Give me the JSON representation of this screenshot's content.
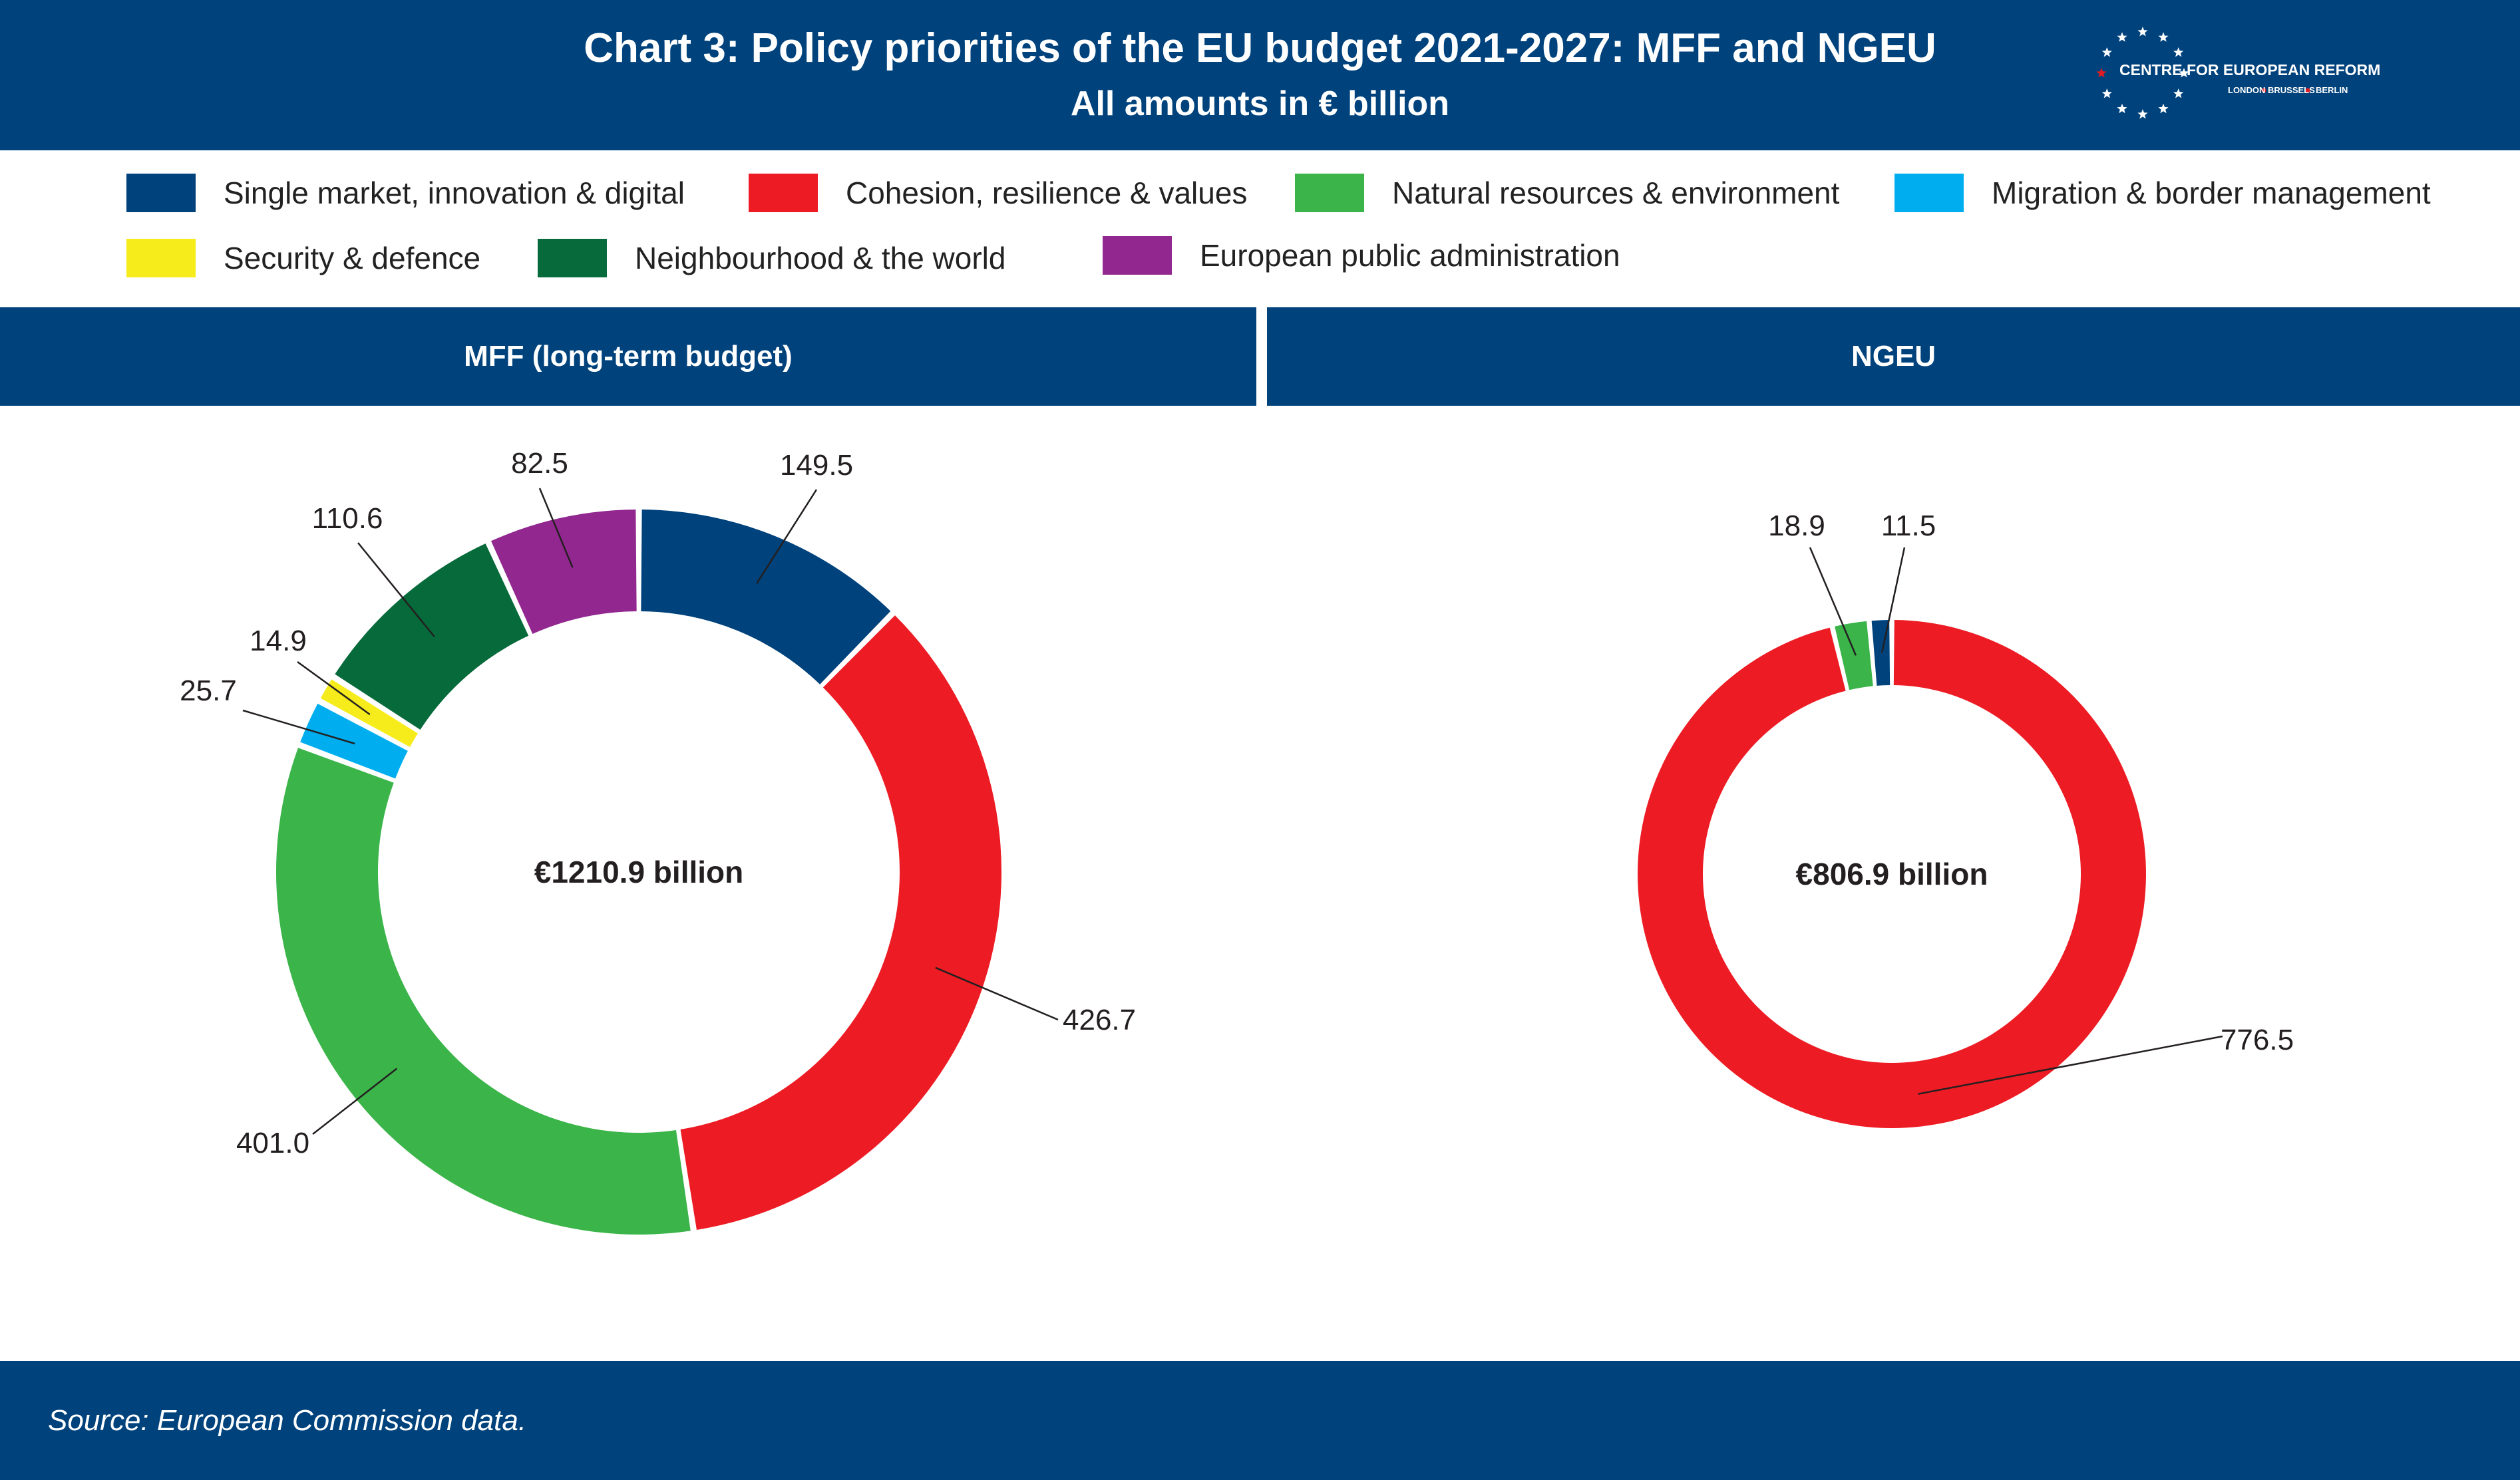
{
  "title": "Chart 3: Policy priorities of the EU budget 2021-2027: MFF and NGEU",
  "subtitle": "All amounts in € billion",
  "logo": {
    "name": "CENTRE FOR EUROPEAN REFORM",
    "cities": [
      "LONDON",
      "BRUSSELS",
      "BERLIN"
    ],
    "colors": {
      "stars": "#ffffff",
      "accent": "#e31b23"
    }
  },
  "legend": [
    {
      "label": "Single market, innovation & digital",
      "color": "#00427c"
    },
    {
      "label": "Cohesion, resilience & values",
      "color": "#ed1c24"
    },
    {
      "label": "Natural resources & environment",
      "color": "#3bb54a"
    },
    {
      "label": "Migration & border management",
      "color": "#00aeef"
    },
    {
      "label": "Security & defence",
      "color": "#f7ec1b"
    },
    {
      "label": "Neighbourhood & the world",
      "color": "#066a3a"
    },
    {
      "label": "European public administration",
      "color": "#92278f"
    }
  ],
  "panels": {
    "left": "MFF (long-term budget)",
    "right": "NGEU"
  },
  "source": "Source: European Commission data.",
  "chart_data": [
    {
      "type": "pie",
      "subtype": "donut",
      "panel": "MFF (long-term budget)",
      "center_label": "€1210.9 billion",
      "unit": "€ billion",
      "categories": [
        "Single market, innovation & digital",
        "Cohesion, resilience & values",
        "Natural resources & environment",
        "Migration & border management",
        "Security & defence",
        "Neighbourhood & the world",
        "European public administration"
      ],
      "values": [
        149.5,
        426.7,
        401.0,
        25.7,
        14.9,
        110.6,
        82.5
      ],
      "value_labels": [
        "149.5",
        "426.7",
        "401.0",
        "25.7",
        "14.9",
        "110.6",
        "82.5"
      ],
      "colors": [
        "#00427c",
        "#ed1c24",
        "#3bb54a",
        "#00aeef",
        "#f7ec1b",
        "#066a3a",
        "#92278f"
      ],
      "start": "12 o'clock",
      "direction": "clockwise"
    },
    {
      "type": "pie",
      "subtype": "donut",
      "panel": "NGEU",
      "center_label": "€806.9 billion",
      "unit": "€ billion",
      "categories": [
        "Cohesion, resilience & values",
        "Natural resources & environment",
        "Single market, innovation & digital"
      ],
      "values": [
        776.5,
        18.9,
        11.5
      ],
      "value_labels": [
        "776.5",
        "18.9",
        "11.5"
      ],
      "colors": [
        "#ed1c24",
        "#3bb54a",
        "#00427c"
      ],
      "start": "12 o'clock",
      "direction": "clockwise"
    }
  ]
}
